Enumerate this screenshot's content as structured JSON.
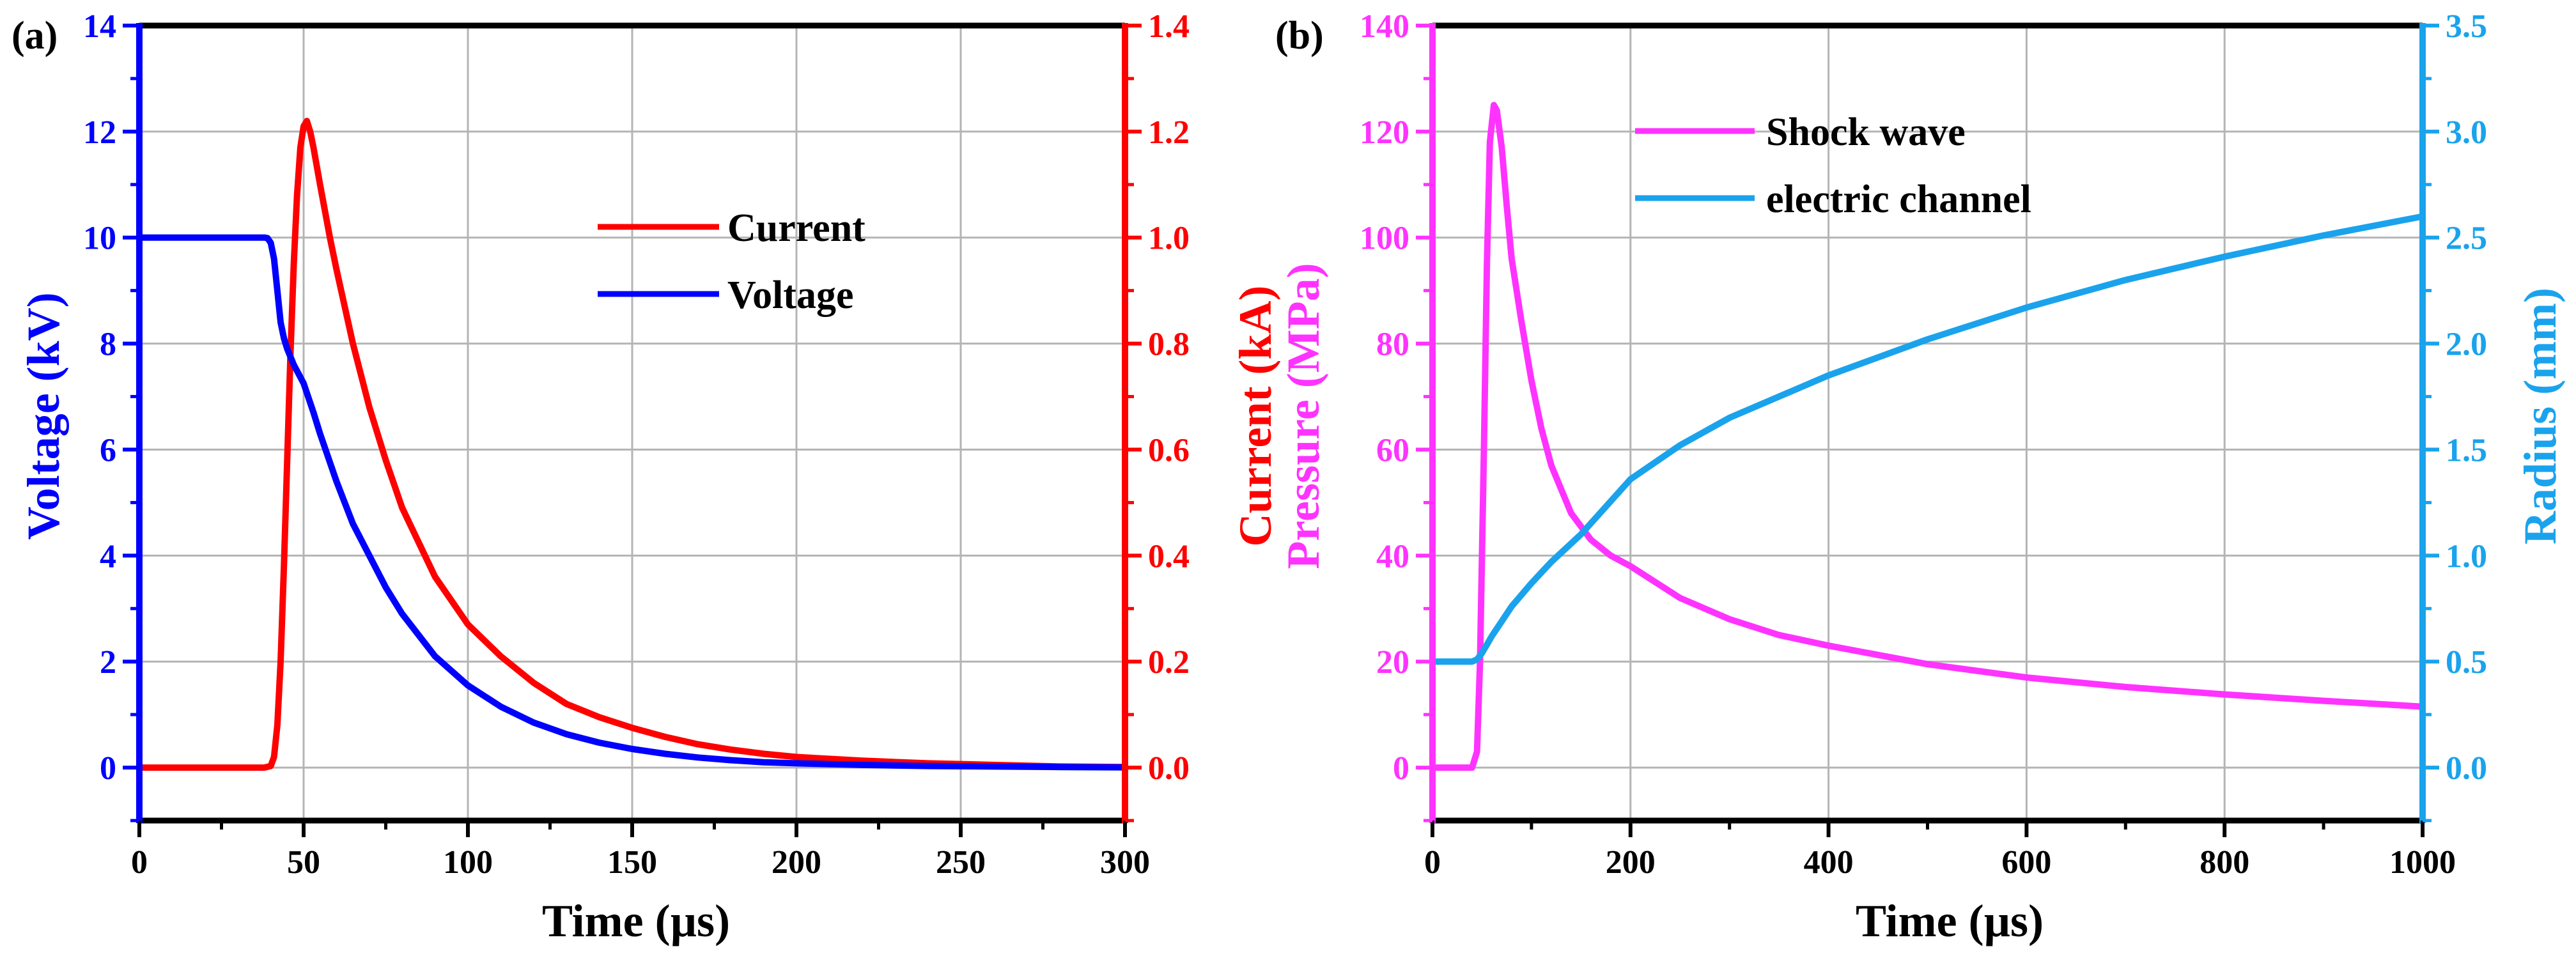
{
  "colors": {
    "red": "#ff0000",
    "blue": "#0000ff",
    "magenta": "#ff33ff",
    "sky": "#1aa3ec",
    "grid": "#b4b4b4",
    "black": "#000000"
  },
  "chart_data": [
    {
      "type": "line",
      "panel_label": "(a)",
      "xlabel": "Time (µs)",
      "xlim": [
        0,
        300
      ],
      "xticks": [
        0,
        50,
        100,
        150,
        200,
        250,
        300
      ],
      "ylabel_left": "Voltage (kV)",
      "ylim_left": [
        -1,
        14
      ],
      "yticks_left": [
        0,
        2,
        4,
        6,
        8,
        10,
        12,
        14
      ],
      "ylabel_right": "Current (kA)",
      "ylim_right": [
        -0.1,
        1.4
      ],
      "yticks_right": [
        "0.0",
        "0.2",
        "0.4",
        "0.6",
        "0.8",
        "1.0",
        "1.2",
        "1.4"
      ],
      "grid": true,
      "legend_position": "upper-middle",
      "series": [
        {
          "name": "Current",
          "axis": "right",
          "color": "#ff0000",
          "x": [
            0,
            38,
            40,
            41,
            42,
            43,
            44,
            45,
            46,
            47,
            48,
            49,
            50,
            51,
            52,
            53,
            55,
            58,
            60,
            65,
            70,
            75,
            80,
            90,
            100,
            110,
            120,
            130,
            140,
            150,
            160,
            170,
            180,
            190,
            200,
            220,
            240,
            260,
            280,
            300
          ],
          "y": [
            0,
            0,
            0.003,
            0.02,
            0.08,
            0.2,
            0.38,
            0.58,
            0.78,
            0.95,
            1.08,
            1.17,
            1.21,
            1.22,
            1.2,
            1.17,
            1.1,
            1.0,
            0.94,
            0.8,
            0.68,
            0.58,
            0.49,
            0.36,
            0.27,
            0.21,
            0.16,
            0.12,
            0.095,
            0.075,
            0.058,
            0.044,
            0.034,
            0.026,
            0.02,
            0.013,
            0.008,
            0.005,
            0.002,
            0.001
          ]
        },
        {
          "name": "Voltage",
          "axis": "left",
          "color": "#0000ff",
          "x": [
            0,
            38,
            39,
            40,
            41,
            42,
            43,
            44,
            45,
            47,
            50,
            53,
            55,
            60,
            65,
            70,
            75,
            80,
            90,
            100,
            110,
            120,
            130,
            140,
            150,
            160,
            170,
            180,
            190,
            200,
            220,
            240,
            260,
            280,
            300
          ],
          "y": [
            10,
            10,
            9.99,
            9.9,
            9.6,
            9.0,
            8.4,
            8.1,
            7.9,
            7.6,
            7.25,
            6.7,
            6.3,
            5.4,
            4.6,
            4.0,
            3.4,
            2.9,
            2.1,
            1.55,
            1.15,
            0.85,
            0.63,
            0.47,
            0.35,
            0.26,
            0.19,
            0.14,
            0.1,
            0.08,
            0.05,
            0.03,
            0.02,
            0.01,
            0.005
          ]
        }
      ]
    },
    {
      "type": "line",
      "panel_label": "(b)",
      "xlabel": "Time (µs)",
      "xlim": [
        0,
        1000
      ],
      "xticks": [
        0,
        200,
        400,
        600,
        800,
        1000
      ],
      "ylabel_left": "Pressure (MPa)",
      "ylim_left": [
        -10,
        140
      ],
      "yticks_left": [
        0,
        20,
        40,
        60,
        80,
        100,
        120,
        140
      ],
      "ylabel_right": "Radius (mm)",
      "ylim_right": [
        -0.25,
        3.5
      ],
      "yticks_right": [
        "0.0",
        "0.5",
        "1.0",
        "1.5",
        "2.0",
        "2.5",
        "3.0",
        "3.5"
      ],
      "grid": true,
      "legend_position": "top-center",
      "series": [
        {
          "name": "Shock wave",
          "axis": "left",
          "color": "#ff33ff",
          "x": [
            0,
            40,
            45,
            48,
            52,
            55,
            58,
            62,
            65,
            70,
            75,
            80,
            90,
            100,
            110,
            120,
            140,
            160,
            180,
            200,
            250,
            300,
            350,
            400,
            500,
            600,
            700,
            800,
            900,
            1000
          ],
          "y": [
            0,
            0,
            3,
            20,
            60,
            95,
            118,
            125,
            124,
            117,
            106,
            96,
            84,
            73,
            64,
            57,
            48,
            43,
            40,
            38,
            32,
            28,
            25,
            23,
            19.5,
            17,
            15.2,
            13.8,
            12.6,
            11.5
          ]
        },
        {
          "name": "electric channel",
          "axis": "right",
          "color": "#1aa3ec",
          "x": [
            0,
            40,
            45,
            50,
            55,
            60,
            70,
            80,
            100,
            120,
            150,
            200,
            250,
            300,
            400,
            500,
            600,
            700,
            800,
            900,
            1000
          ],
          "y": [
            0.5,
            0.5,
            0.51,
            0.54,
            0.58,
            0.62,
            0.69,
            0.76,
            0.87,
            0.97,
            1.1,
            1.36,
            1.52,
            1.65,
            1.85,
            2.02,
            2.17,
            2.3,
            2.41,
            2.51,
            2.6
          ]
        }
      ]
    }
  ]
}
